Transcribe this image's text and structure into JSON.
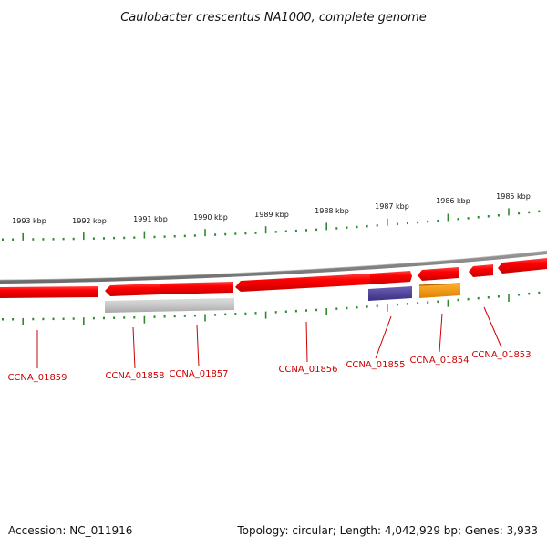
{
  "title": "Caulobacter crescentus NA1000, complete genome",
  "footer": {
    "accession": "Accession: NC_011916",
    "summary": "Topology: circular; Length: 4,042,929 bp; Genes: 3,933"
  },
  "colors": {
    "gene_red": "#e00000",
    "gene_red_light": "#ff5050",
    "backbone": "#808080",
    "tick_green": "#2f8a2f",
    "gray_feature": "#c4c4c4",
    "purple_feature": "#4b3f9a",
    "orange_feature": "#f0960a",
    "label_red": "#cc0000"
  },
  "ticks": [
    {
      "label": "1993 kbp"
    },
    {
      "label": "1992 kbp"
    },
    {
      "label": "1991 kbp"
    },
    {
      "label": "1990 kbp"
    },
    {
      "label": "1989 kbp"
    },
    {
      "label": "1988 kbp"
    },
    {
      "label": "1987 kbp"
    },
    {
      "label": "1986 kbp"
    },
    {
      "label": "1985 kbp"
    }
  ],
  "genes": [
    {
      "label": "CCNA_01859"
    },
    {
      "label": "CCNA_01858"
    },
    {
      "label": "CCNA_01857"
    },
    {
      "label": "CCNA_01856"
    },
    {
      "label": "CCNA_01855"
    },
    {
      "label": "CCNA_01854"
    },
    {
      "label": "CCNA_01853"
    }
  ]
}
